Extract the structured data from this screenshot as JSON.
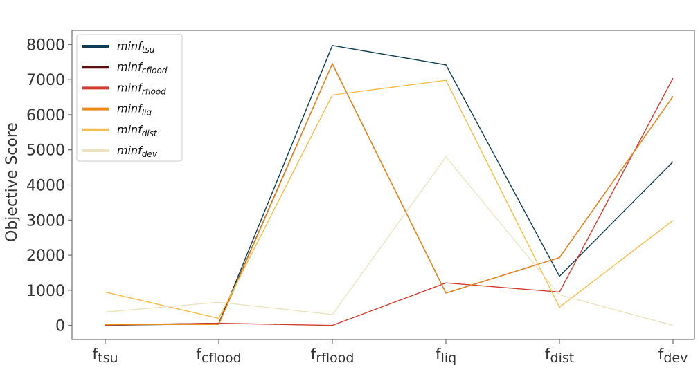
{
  "chart_data": {
    "type": "line",
    "categories": [
      {
        "base": "f",
        "sub": "tsu"
      },
      {
        "base": "f",
        "sub": "cflood"
      },
      {
        "base": "f",
        "sub": "rflood"
      },
      {
        "base": "f",
        "sub": "liq"
      },
      {
        "base": "f",
        "sub": "dist"
      },
      {
        "base": "f",
        "sub": "dev"
      }
    ],
    "ylabel": "Objective Score",
    "yticks": [
      "0",
      "1000",
      "2000",
      "3000",
      "4000",
      "5000",
      "6000",
      "7000",
      "8000"
    ],
    "ylim": [
      -400,
      8400
    ],
    "grid": false,
    "legend_position": "top-left",
    "series": [
      {
        "name": {
          "base": "minf",
          "sub": "tsu"
        },
        "color": "#0f3b52",
        "values": [
          0,
          50,
          7970,
          7420,
          1400,
          4660
        ]
      },
      {
        "name": {
          "base": "minf",
          "sub": "cflood"
        },
        "color": "#5a1010",
        "values": [
          20,
          60,
          7450,
          920,
          1930,
          6520
        ]
      },
      {
        "name": {
          "base": "minf",
          "sub": "rflood"
        },
        "color": "#d13a2f",
        "values": [
          10,
          60,
          0,
          1210,
          950,
          7040
        ]
      },
      {
        "name": {
          "base": "minf",
          "sub": "liq"
        },
        "color": "#ea8a1a",
        "values": [
          20,
          30,
          7450,
          920,
          1930,
          6520
        ]
      },
      {
        "name": {
          "base": "minf",
          "sub": "dist"
        },
        "color": "#f5bc4a",
        "values": [
          950,
          200,
          6560,
          6980,
          520,
          2990
        ]
      },
      {
        "name": {
          "base": "minf",
          "sub": "dev"
        },
        "color": "#ece3be",
        "values": [
          380,
          660,
          310,
          4800,
          870,
          0
        ]
      }
    ]
  }
}
